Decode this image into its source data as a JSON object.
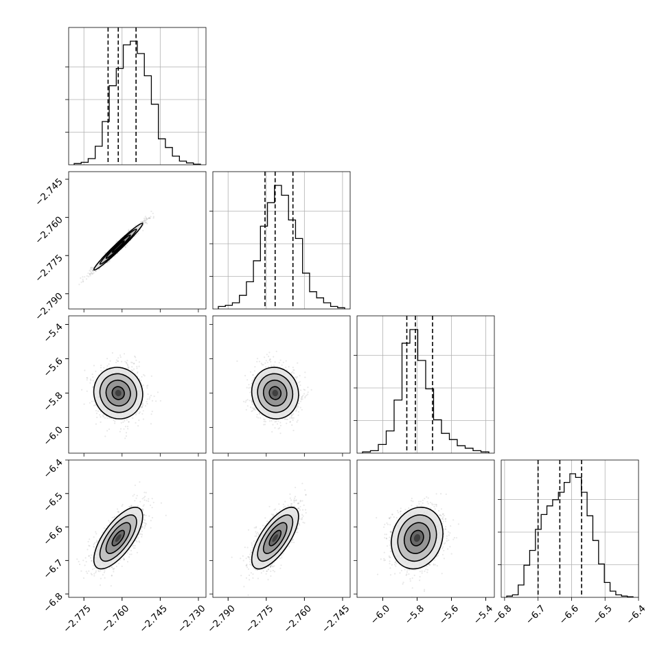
{
  "chart_data": {
    "type": "corner",
    "parameters": [
      {
        "index": 0,
        "range": [
          -2.781,
          -2.727
        ],
        "ticks": [
          -2.775,
          -2.76,
          -2.745,
          -2.73
        ],
        "tick_labels": [
          "−2.775",
          "−2.760",
          "−2.745",
          "−2.730"
        ],
        "mean": -2.7615,
        "sd": 0.0048,
        "quantiles": [
          -2.7655,
          -2.7615,
          -2.7545
        ],
        "histogram": [
          0.01,
          0.02,
          0.05,
          0.15,
          0.35,
          0.64,
          0.78,
          0.97,
          1.0,
          0.9,
          0.72,
          0.49,
          0.21,
          0.14,
          0.07,
          0.03,
          0.015,
          0.005
        ]
      },
      {
        "index": 1,
        "range": [
          -2.796,
          -2.742
        ],
        "ticks": [
          -2.79,
          -2.775,
          -2.76,
          -2.745
        ],
        "tick_labels": [
          "−2.790",
          "−2.775",
          "−2.760",
          "−2.745"
        ],
        "mean": -2.7715,
        "sd": 0.0046,
        "quantiles": [
          -2.7755,
          -2.7715,
          -2.7645
        ],
        "histogram": [
          0.02,
          0.03,
          0.05,
          0.11,
          0.22,
          0.39,
          0.67,
          0.86,
          1.0,
          0.92,
          0.72,
          0.57,
          0.29,
          0.14,
          0.09,
          0.05,
          0.02,
          0.01
        ]
      },
      {
        "index": 2,
        "range": [
          -6.15,
          -5.35
        ],
        "ticks": [
          -6.0,
          -5.8,
          -5.6,
          -5.4
        ],
        "tick_labels": [
          "−6.0",
          "−5.8",
          "−5.6",
          "−5.4"
        ],
        "mean": -5.8,
        "sd": 0.075,
        "quantiles": [
          -5.86,
          -5.81,
          -5.71
        ],
        "histogram": [
          0.01,
          0.02,
          0.07,
          0.18,
          0.43,
          0.89,
          1.0,
          0.75,
          0.52,
          0.27,
          0.16,
          0.11,
          0.06,
          0.04,
          0.02,
          0.01
        ]
      },
      {
        "index": 3,
        "range": [
          -6.81,
          -6.4
        ],
        "ticks": [
          -6.8,
          -6.7,
          -6.6,
          -6.5,
          -6.4
        ],
        "tick_labels": [
          "−6.8",
          "−6.7",
          "−6.6",
          "−6.5",
          "−6.4"
        ],
        "mean": -6.633,
        "sd": 0.046,
        "quantiles": [
          -6.7,
          -6.635,
          -6.57
        ],
        "histogram": [
          0.01,
          0.02,
          0.1,
          0.26,
          0.38,
          0.55,
          0.67,
          0.74,
          0.79,
          0.85,
          0.93,
          1.0,
          0.97,
          0.85,
          0.66,
          0.46,
          0.27,
          0.12,
          0.05,
          0.02,
          0.01,
          0.005
        ]
      }
    ],
    "correlations": [
      {
        "x": 0,
        "y": 1,
        "rho": 0.98
      },
      {
        "x": 0,
        "y": 2,
        "rho": -0.05
      },
      {
        "x": 1,
        "y": 2,
        "rho": -0.05
      },
      {
        "x": 0,
        "y": 3,
        "rho": 0.7
      },
      {
        "x": 1,
        "y": 3,
        "rho": 0.7
      },
      {
        "x": 2,
        "y": 3,
        "rho": 0.15
      }
    ],
    "contour_levels_sigma": [
      0.5,
      1.0,
      1.5,
      2.0
    ],
    "grid": true,
    "colors": {
      "lines": "#000000",
      "grid": "#b0b0b0",
      "points": "#6f6f6f",
      "density_max": "#202020"
    }
  }
}
